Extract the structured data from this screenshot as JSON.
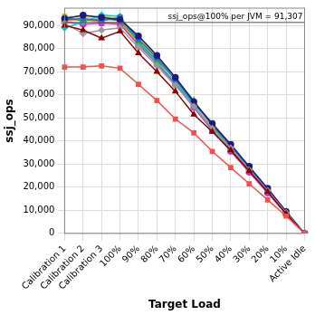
{
  "chart_data": {
    "type": "line",
    "x_label": "Target Load",
    "y_label": "ssj_ops",
    "categories": [
      "Calibration 1",
      "Calibration 2",
      "Calibration 3",
      "100%",
      "90%",
      "80%",
      "70%",
      "60%",
      "50%",
      "40%",
      "30%",
      "20%",
      "10%",
      "Active Idle"
    ],
    "ylim": [
      0,
      97500
    ],
    "yticks": [
      0,
      {
        "value": 10000,
        "label": "10,000"
      },
      {
        "value": 20000,
        "label": "20,000"
      },
      {
        "value": 30000,
        "label": "30,000"
      },
      {
        "value": 40000,
        "label": "40,000"
      },
      {
        "value": 50000,
        "label": "50,000"
      },
      {
        "value": 60000,
        "label": "60,000"
      },
      {
        "value": 70000,
        "label": "70,000"
      },
      {
        "value": 80000,
        "label": "80,000"
      },
      {
        "value": 90000,
        "label": "90,000"
      }
    ],
    "grid": true,
    "annotations": [
      {
        "y": 91307,
        "text": "ssj_ops@100% per JVM = 91,307"
      }
    ],
    "series": [
      {
        "color": "#f05050",
        "marker": "square",
        "values": [
          72000,
          72000,
          72500,
          71500,
          64500,
          57500,
          49500,
          43500,
          35500,
          28500,
          21500,
          14500,
          7500,
          0
        ]
      },
      {
        "color": "#8b0000",
        "marker": "triangle",
        "values": [
          90000,
          88000,
          84500,
          87500,
          78000,
          70000,
          61500,
          51500,
          44000,
          36000,
          27000,
          18000,
          8500,
          0
        ]
      },
      {
        "color": "#999999",
        "marker": "diamond",
        "values": [
          91000,
          86500,
          88000,
          89000,
          80500,
          72500,
          64000,
          55000,
          45500,
          37000,
          27500,
          18500,
          9000,
          0
        ]
      },
      {
        "color": "#1a1a80",
        "marker": "circle",
        "values": [
          93000,
          94500,
          93500,
          92500,
          85500,
          77000,
          67500,
          57000,
          47500,
          38500,
          29000,
          19500,
          9500,
          0
        ]
      },
      {
        "color": "#3366cc",
        "marker": "square",
        "values": [
          92500,
          93000,
          92000,
          93500,
          84000,
          76000,
          66500,
          56500,
          47000,
          38000,
          28500,
          19000,
          9000,
          0
        ]
      },
      {
        "color": "#33aa33",
        "marker": "triangle",
        "values": [
          93500,
          92000,
          93000,
          92000,
          83000,
          75000,
          67000,
          57500,
          46500,
          37500,
          28000,
          19000,
          9500,
          0
        ]
      },
      {
        "color": "#00cccc",
        "marker": "diamond",
        "values": [
          89000,
          91500,
          94500,
          94000,
          82500,
          74000,
          65500,
          55500,
          45000,
          36500,
          27500,
          18500,
          9000,
          0
        ]
      },
      {
        "color": "#cc33cc",
        "marker": "circle",
        "values": [
          91500,
          90500,
          91000,
          90500,
          81500,
          73500,
          64500,
          54500,
          44500,
          35500,
          26500,
          17500,
          8500,
          0
        ]
      },
      {
        "color": "#cccc00",
        "marker": "square",
        "values": [
          94000,
          93500,
          94000,
          93000,
          84500,
          76500,
          66000,
          56000,
          48000,
          38000,
          28500,
          19500,
          9500,
          0
        ]
      },
      {
        "color": "#ff9900",
        "marker": "triangle",
        "values": [
          92000,
          92500,
          91500,
          91000,
          82000,
          74500,
          65000,
          55000,
          46000,
          37000,
          27000,
          18000,
          9000,
          0
        ]
      }
    ]
  }
}
